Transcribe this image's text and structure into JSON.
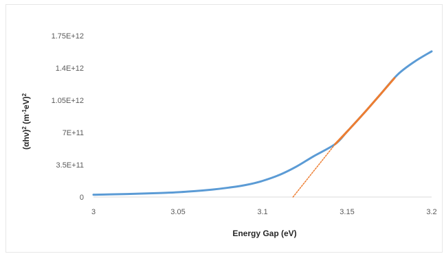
{
  "chart_data": {
    "type": "line",
    "xlabel": "Energy Gap (eV)",
    "ylabel_parts": [
      "(αhν)",
      "2",
      " (m",
      "-1",
      "eV)",
      "2"
    ],
    "xlim": [
      3,
      3.2
    ],
    "ylim": [
      0,
      1750000000000
    ],
    "x_ticks": [
      3,
      3.05,
      3.1,
      3.15,
      3.2
    ],
    "x_tick_labels": [
      "3",
      "3.05",
      "3.1",
      "3.15",
      "3.2"
    ],
    "y_ticks": [
      0,
      350000000000,
      700000000000,
      1050000000000,
      1400000000000,
      1750000000000
    ],
    "y_tick_labels": [
      "0",
      "3.5E+11",
      "7E+11",
      "1.05E+12",
      "1.4E+12",
      "1.75E+12"
    ],
    "grid": false,
    "legend": "none",
    "series": [
      {
        "style": "solid",
        "color": "#5B9BD5",
        "x": [
          3.0,
          3.01,
          3.02,
          3.03,
          3.04,
          3.05,
          3.06,
          3.07,
          3.08,
          3.09,
          3.1,
          3.11,
          3.12,
          3.13,
          3.143,
          3.15,
          3.16,
          3.17,
          3.18,
          3.19,
          3.2
        ],
        "y": [
          25000000000,
          29000000000,
          33000000000,
          38000000000,
          44000000000,
          52000000000,
          64000000000,
          80000000000,
          102000000000,
          130000000000,
          175000000000,
          240000000000,
          330000000000,
          440000000000,
          575000000000,
          710000000000,
          910000000000,
          1120000000000,
          1330000000000,
          1470000000000,
          1580000000000
        ]
      },
      {
        "style": "solid",
        "color": "#ED7D31",
        "x": [
          3.143,
          3.15,
          3.16,
          3.17,
          3.178
        ],
        "y": [
          575000000000,
          710000000000,
          910000000000,
          1120000000000,
          1290000000000
        ]
      },
      {
        "style": "dotted",
        "color": "#ED7D31",
        "x": [
          3.118,
          3.143
        ],
        "y": [
          0,
          575000000000
        ]
      }
    ]
  }
}
